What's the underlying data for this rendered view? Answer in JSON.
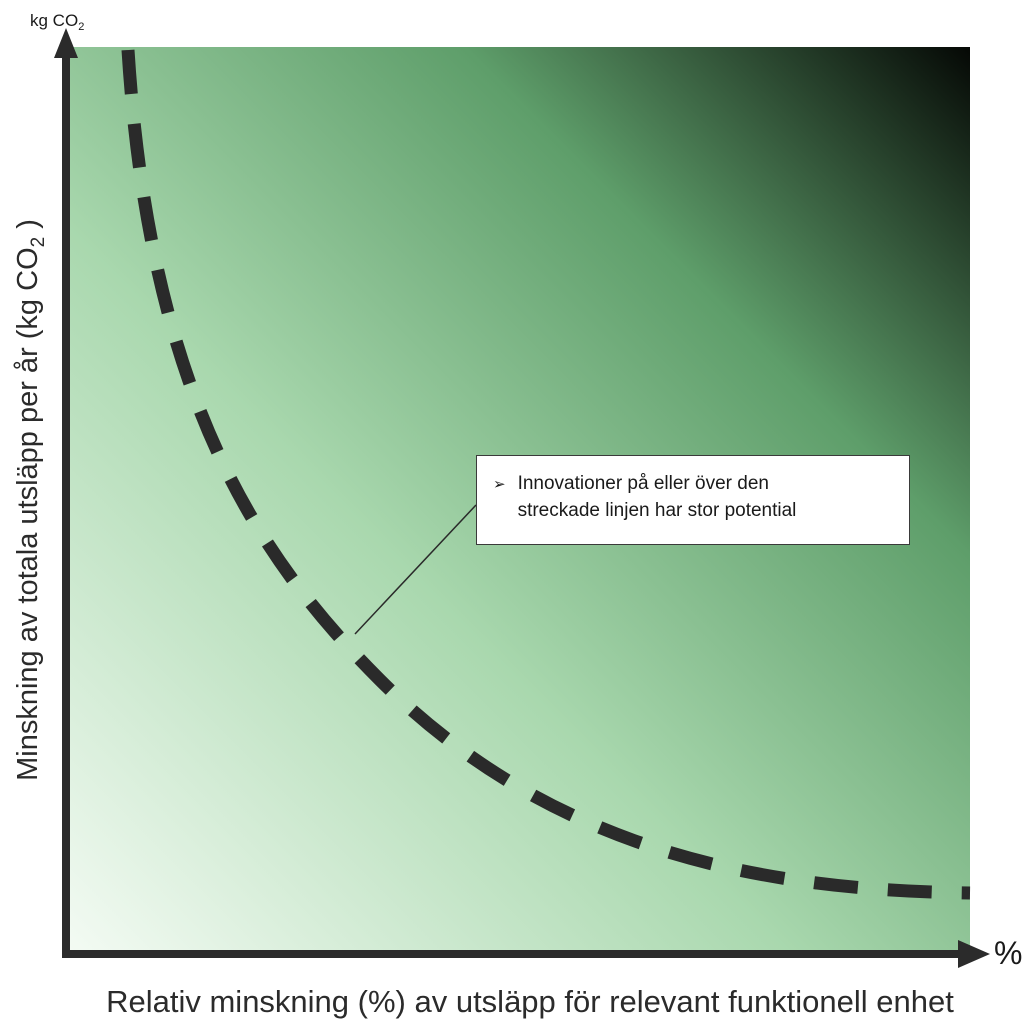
{
  "diagram": {
    "y_unit": "kg CO",
    "y_unit_sub": "2",
    "x_unit": "%",
    "y_axis_label_main": "Minskning av totala utsläpp per år (kg CO",
    "y_axis_label_sub": "2",
    "y_axis_label_end": " )",
    "x_axis_label": "Relativ minskning (%) av utsläpp för relevant funktionell enhet",
    "callout": {
      "bullet": "➢",
      "text_line1": "Innovationer på eller över den",
      "text_line2": "streckade linjen har stor potential"
    },
    "colors": {
      "gradient_light": "#f4fbf4",
      "gradient_mid": "#a9d8ae",
      "gradient_green": "#5e9e6a",
      "gradient_dark": "#050805",
      "axis": "#2b2b2b",
      "curve": "#2a2a2a"
    }
  }
}
